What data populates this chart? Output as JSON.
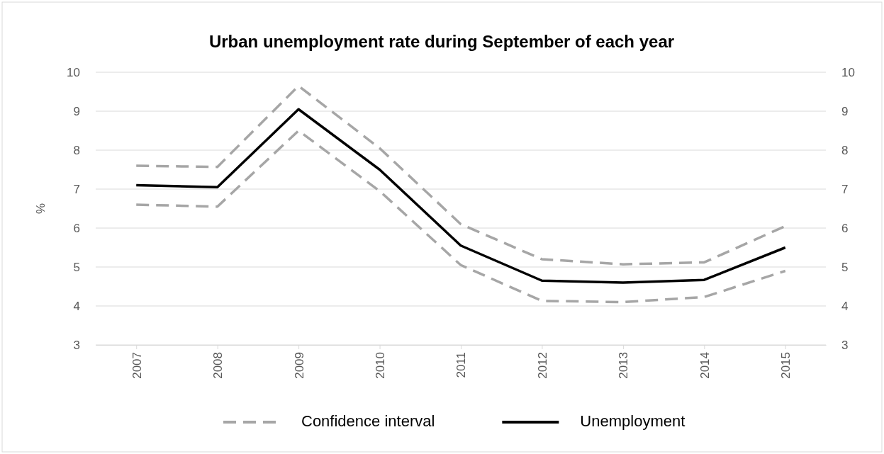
{
  "chart_data": {
    "type": "line",
    "title": "Urban unemployment rate during September of each year",
    "ylabel": "%",
    "categories": [
      "2007",
      "2008",
      "2009",
      "2010",
      "2011",
      "2012",
      "2013",
      "2014",
      "2015"
    ],
    "series": [
      {
        "name": "Confidence interval",
        "color": "#a6a6a6",
        "line_style": "dashed",
        "values": [
          7.6,
          7.57,
          9.65,
          8.05,
          6.1,
          5.2,
          5.07,
          5.12,
          6.05
        ]
      },
      {
        "color": "#a6a6a6",
        "line_style": "dashed",
        "values": [
          6.6,
          6.55,
          8.5,
          6.95,
          5.05,
          4.13,
          4.1,
          4.23,
          4.9
        ]
      },
      {
        "name": "Unemployment",
        "color": "#000000",
        "line_style": "solid",
        "values": [
          7.1,
          7.05,
          9.05,
          7.5,
          5.55,
          4.65,
          4.6,
          4.67,
          5.5
        ]
      }
    ],
    "ylim": [
      3,
      10
    ],
    "yticks": [
      3,
      4,
      5,
      6,
      7,
      8,
      9,
      10
    ],
    "y2lim": [
      3,
      10
    ],
    "y2ticks": [
      3,
      4,
      5,
      6,
      7,
      8,
      9,
      10
    ],
    "grid": "y",
    "legend": "bottom",
    "marker": "none"
  }
}
